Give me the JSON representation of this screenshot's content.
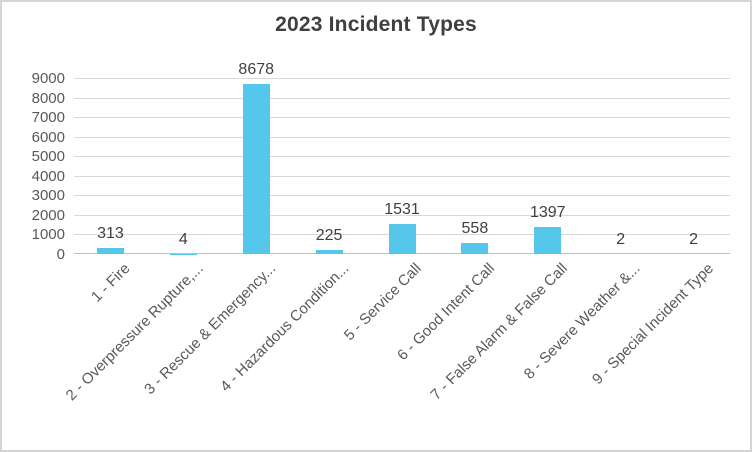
{
  "chart_data": {
    "type": "bar",
    "title": "2023 Incident Types",
    "categories": [
      "1 - Fire",
      "2 - Overpressure Rupture,...",
      "3 - Rescue & Emergency...",
      "4 - Hazardous Condition...",
      "5 - Service Call",
      "6 - Good Intent Call",
      "7 - False Alarm & False Call",
      "8 - Severe Weather &...",
      "9 - Special Incident Type"
    ],
    "values": [
      313,
      4,
      8678,
      225,
      1531,
      558,
      1397,
      2,
      2
    ],
    "data_labels": [
      "313",
      "4",
      "8678",
      "225",
      "1531",
      "558",
      "1397",
      "2",
      "2"
    ],
    "xlabel": "",
    "ylabel": "",
    "ylim": [
      0,
      9000
    ],
    "ytick_step": 1000,
    "ytick_labels": [
      "0",
      "1000",
      "2000",
      "3000",
      "4000",
      "5000",
      "6000",
      "7000",
      "8000",
      "9000"
    ],
    "grid": true,
    "legend": "none",
    "colors": {
      "bar_fill": "#55C7EB",
      "gridline": "#D9D9D9",
      "axis_line": "#BFBFBF",
      "tick_label": "#595959",
      "data_label": "#404040",
      "title": "#404040",
      "frame_border": "#D4D4D4",
      "background": "#FFFFFF"
    }
  }
}
